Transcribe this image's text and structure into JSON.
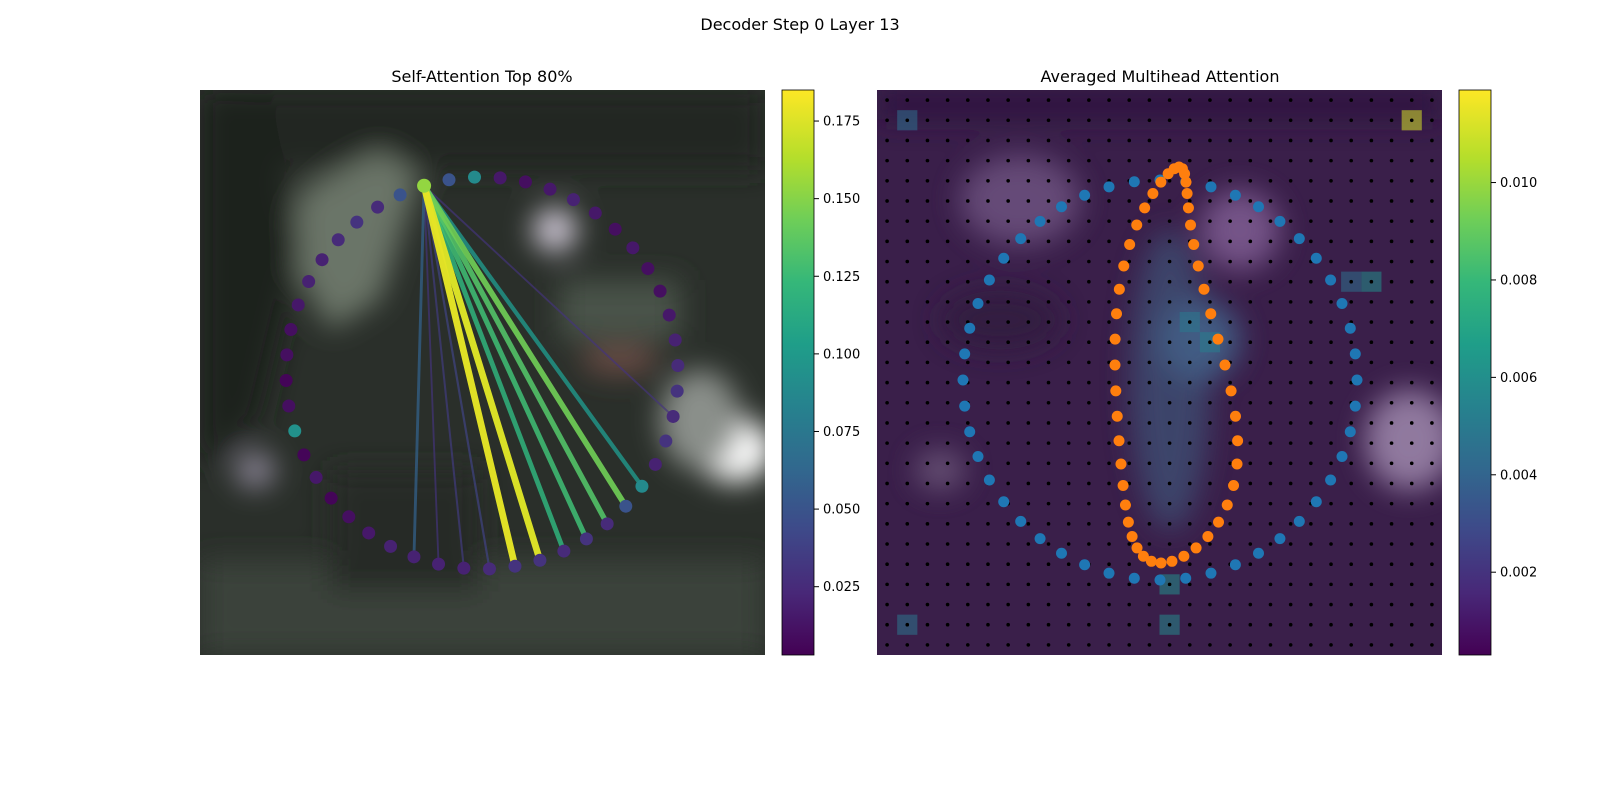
{
  "figure": {
    "title": "Decoder Step 0 Layer 13"
  },
  "chart_data": [
    {
      "type": "scatter",
      "title": "Self-Attention Top 80%",
      "description_of_points": "ring of 48 contour points colored by self-attention weight from the query point",
      "query_point_index": 0,
      "point_values": [
        0.155,
        0.05,
        0.025,
        0.03,
        0.025,
        0.02,
        0.02,
        0.015,
        0.01,
        0.01,
        0.005,
        0.01,
        0.095,
        0.005,
        0.015,
        0.005,
        0.01,
        0.015,
        0.02,
        0.02,
        0.02,
        0.02,
        0.025,
        0.03,
        0.03,
        0.025,
        0.03,
        0.025,
        0.05,
        0.09,
        0.02,
        0.03,
        0.025,
        0.03,
        0.025,
        0.02,
        0.015,
        0.01,
        0.01,
        0.015,
        0.01,
        0.015,
        0.02,
        0.015,
        0.01,
        0.015,
        0.09,
        0.05
      ],
      "attention_edges": [
        {
          "to": 23,
          "weight": 0.178
        },
        {
          "to": 24,
          "weight": 0.176
        },
        {
          "to": 25,
          "weight": 0.12
        },
        {
          "to": 26,
          "weight": 0.128
        },
        {
          "to": 27,
          "weight": 0.135
        },
        {
          "to": 28,
          "weight": 0.145
        },
        {
          "to": 29,
          "weight": 0.1
        },
        {
          "to": 19,
          "weight": 0.06
        },
        {
          "to": 22,
          "weight": 0.04
        },
        {
          "to": 21,
          "weight": 0.035
        },
        {
          "to": 20,
          "weight": 0.03
        },
        {
          "to": 32,
          "weight": 0.03
        }
      ],
      "colorbar": {
        "colormap": "viridis",
        "min": 0.003,
        "max": 0.185,
        "ticks": [
          "0.025",
          "0.050",
          "0.075",
          "0.100",
          "0.125",
          "0.150",
          "0.175"
        ],
        "tick_values": [
          0.025,
          0.05,
          0.075,
          0.1,
          0.125,
          0.15,
          0.175
        ]
      }
    },
    {
      "type": "heatmap",
      "title": "Averaged Multihead Attention",
      "grid_size": 28,
      "series": [
        {
          "name": "outer contour",
          "color": "#1f77b4"
        },
        {
          "name": "inner contour",
          "color": "#ff7f0e"
        }
      ],
      "hotspots": [
        {
          "row": 1,
          "col": 26,
          "value": 0.0112
        },
        {
          "row": 1,
          "col": 1,
          "value": 0.0045
        },
        {
          "row": 9,
          "col": 24,
          "value": 0.006
        },
        {
          "row": 9,
          "col": 23,
          "value": 0.0045
        },
        {
          "row": 11,
          "col": 15,
          "value": 0.005
        },
        {
          "row": 12,
          "col": 16,
          "value": 0.0052
        },
        {
          "row": 24,
          "col": 14,
          "value": 0.006
        },
        {
          "row": 26,
          "col": 14,
          "value": 0.0058
        },
        {
          "row": 26,
          "col": 1,
          "value": 0.0048
        }
      ],
      "colorbar": {
        "colormap": "viridis",
        "min": 0.0003,
        "max": 0.0119,
        "ticks": [
          "0.002",
          "0.004",
          "0.006",
          "0.008",
          "0.010"
        ],
        "tick_values": [
          0.002,
          0.004,
          0.006,
          0.008,
          0.01
        ]
      }
    }
  ],
  "colors": {
    "viridis": [
      "#440154",
      "#482878",
      "#3e4989",
      "#31688e",
      "#26828e",
      "#1f9e89",
      "#35b779",
      "#6ece58",
      "#b5de2b",
      "#fde725"
    ],
    "photo_background": "#2a2f2a"
  }
}
